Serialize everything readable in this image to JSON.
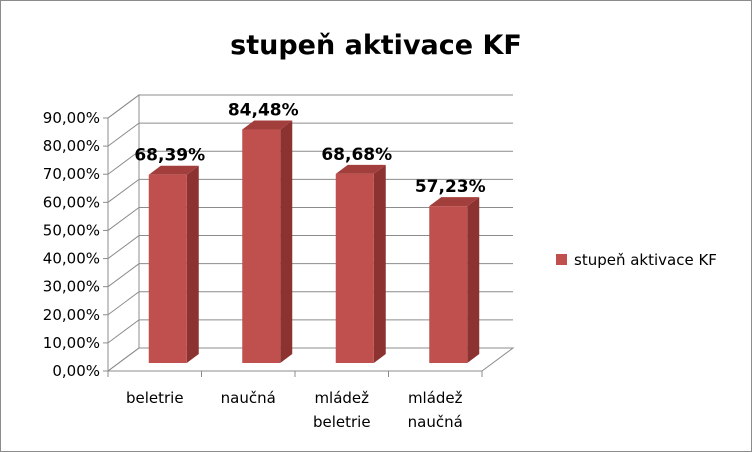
{
  "chart_data": {
    "type": "bar",
    "title": "stupeň aktivace KF",
    "categories": [
      [
        "beletrie"
      ],
      [
        "naučná"
      ],
      [
        "mládež",
        "beletrie"
      ],
      [
        "mládež",
        "naučná"
      ]
    ],
    "series": [
      {
        "name": "stupeň aktivace KF",
        "color": "#C0504D",
        "values": [
          68.39,
          84.48,
          68.68,
          57.23
        ],
        "labels": [
          "68,39%",
          "84,48%",
          "68,68%",
          "57,23%"
        ]
      }
    ],
    "ylim": [
      0,
      90
    ],
    "yticks": [
      "0,00%",
      "10,00%",
      "20,00%",
      "30,00%",
      "40,00%",
      "50,00%",
      "60,00%",
      "70,00%",
      "80,00%",
      "90,00%"
    ],
    "grid": true,
    "legend": "right",
    "xlabel": "",
    "ylabel": ""
  }
}
